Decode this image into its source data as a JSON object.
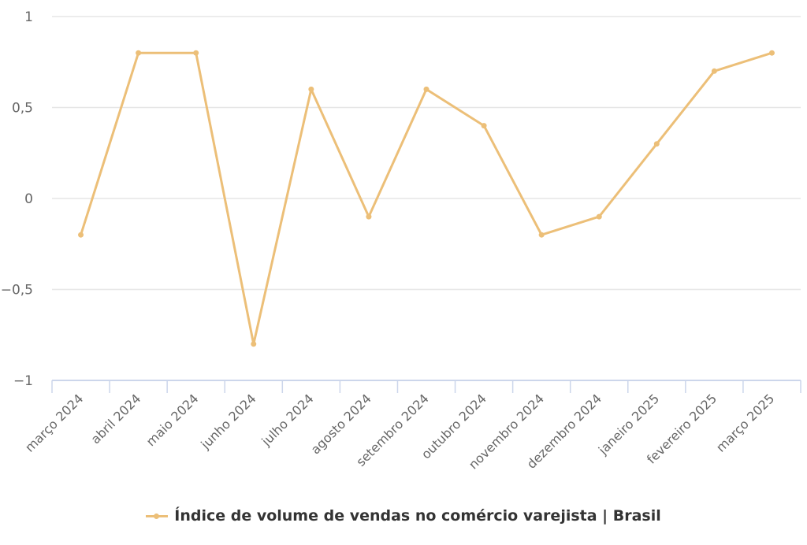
{
  "chart_data": {
    "type": "line",
    "title": "",
    "xlabel": "",
    "ylabel": "",
    "ylim": [
      -1,
      1
    ],
    "yticks": [
      1,
      0.5,
      0,
      -0.5,
      -1
    ],
    "ytick_labels": [
      "1",
      "0,5",
      "0",
      "−0,5",
      "−1"
    ],
    "grid": true,
    "legend_position": "bottom",
    "categories": [
      "março 2024",
      "abril 2024",
      "maio 2024",
      "junho 2024",
      "julho 2024",
      "agosto 2024",
      "setembro 2024",
      "outubro 2024",
      "novembro 2024",
      "dezembro 2024",
      "janeiro 2025",
      "fevereiro 2025",
      "março 2025"
    ],
    "series": [
      {
        "name": "Índice de volume de vendas no comércio varejista | Brasil",
        "color": "#ecbf78",
        "values": [
          -0.2,
          0.8,
          0.8,
          -0.8,
          0.6,
          -0.1,
          0.6,
          0.4,
          -0.2,
          -0.1,
          0.3,
          0.7,
          0.8
        ]
      }
    ]
  },
  "legend": {
    "label": "Índice de volume de vendas no comércio varejista | Brasil"
  },
  "colors": {
    "series": "#ecbf78",
    "grid": "#e6e6e6",
    "axis": "#ccd6eb",
    "text": "#666666"
  }
}
